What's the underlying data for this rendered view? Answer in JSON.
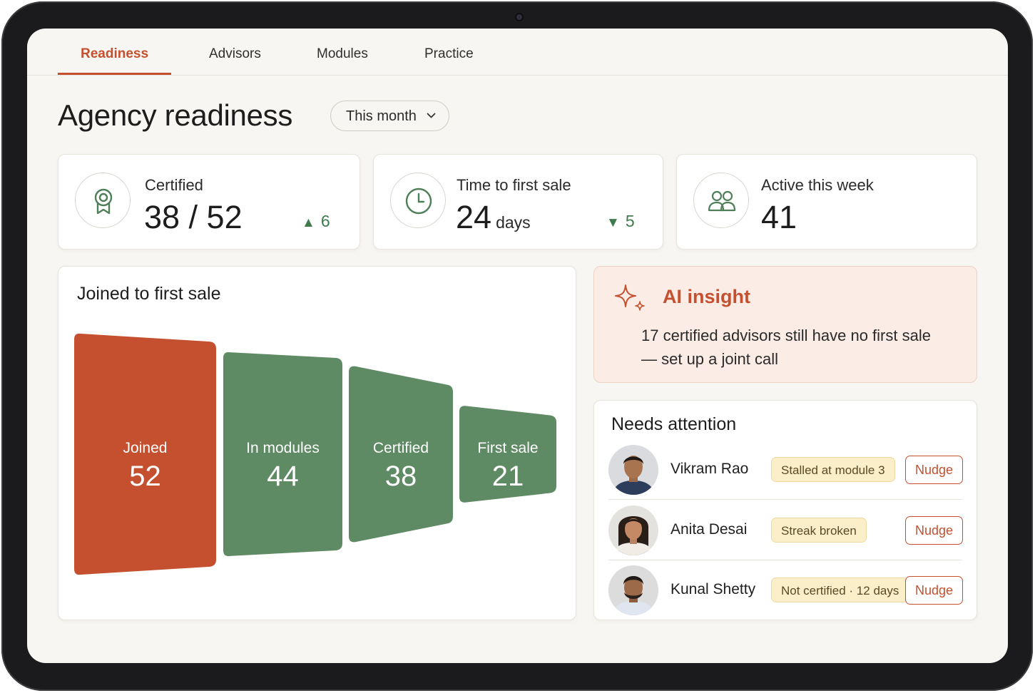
{
  "tabs": [
    {
      "label": "Readiness",
      "active": true
    },
    {
      "label": "Advisors",
      "active": false
    },
    {
      "label": "Modules",
      "active": false
    },
    {
      "label": "Practice",
      "active": false
    }
  ],
  "header": {
    "title": "Agency readiness",
    "period": "This month"
  },
  "kpis": {
    "certified": {
      "label": "Certified",
      "value": "38 / 52",
      "delta": "6",
      "delta_direction": "up",
      "icon": "award-icon"
    },
    "time_to_sale": {
      "label": "Time to first sale",
      "value": "24",
      "unit": "days",
      "delta": "5",
      "delta_direction": "down",
      "icon": "clock-icon"
    },
    "active": {
      "label": "Active this week",
      "value": "41",
      "icon": "users-icon"
    }
  },
  "funnel": {
    "title": "Joined to first sale",
    "stages": [
      {
        "label": "Joined",
        "value": 52
      },
      {
        "label": "In modules",
        "value": 44
      },
      {
        "label": "Certified",
        "value": 38
      },
      {
        "label": "First sale",
        "value": 21
      }
    ]
  },
  "insight": {
    "title": "AI insight",
    "text": "17 certified advisors still have no first sale — set up a joint call",
    "icon": "sparkle-icon"
  },
  "attention": {
    "title": "Needs attention",
    "people": [
      {
        "name": "Vikram Rao",
        "status": "Stalled at module 3",
        "action": "Nudge"
      },
      {
        "name": "Anita Desai",
        "status": "Streak broken",
        "action": "Nudge"
      },
      {
        "name": "Kunal Shetty",
        "status": "Not certified · 12 days",
        "action": "Nudge"
      }
    ]
  },
  "colors": {
    "accent": "#c5502f",
    "green": "#5e8a64",
    "delta_green": "#3f7a4c",
    "badge_bg": "#fbefc9",
    "insight_bg": "#fcece6"
  }
}
